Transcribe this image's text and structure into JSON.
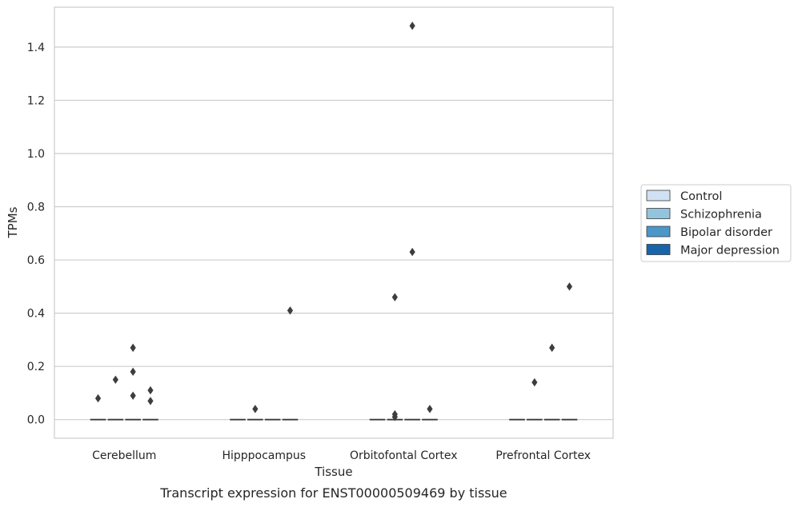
{
  "chart_data": {
    "type": "boxplot",
    "title": "",
    "caption": "Transcript expression for ENST00000509469 by tissue",
    "xlabel": "Tissue",
    "ylabel": "TPMs",
    "ylim": [
      -0.07,
      1.55
    ],
    "yticks": [
      0.0,
      0.2,
      0.4,
      0.6,
      0.8,
      1.0,
      1.2,
      1.4
    ],
    "ytick_labels": [
      "0.0",
      "0.2",
      "0.4",
      "0.6",
      "0.8",
      "1.0",
      "1.2",
      "1.4"
    ],
    "grid": "horizontal",
    "categories": [
      "Cerebellum",
      "Hipppocampus",
      "Orbitofontal Cortex",
      "Prefrontal Cortex"
    ],
    "series": [
      {
        "name": "Control",
        "color": "#cfe1f2"
      },
      {
        "name": "Schizophrenia",
        "color": "#93c4de"
      },
      {
        "name": "Bipolar disorder",
        "color": "#4b97c9"
      },
      {
        "name": "Major depression",
        "color": "#1764ab"
      }
    ],
    "medians": [
      [
        0.0,
        0.0,
        0.0,
        0.0
      ],
      [
        0.0,
        0.0,
        0.0,
        0.0
      ],
      [
        0.0,
        0.0,
        0.0,
        0.0
      ],
      [
        0.0,
        0.0,
        0.0,
        0.0
      ]
    ],
    "outliers": [
      {
        "category": 0,
        "series": 0,
        "values": [
          0.08
        ]
      },
      {
        "category": 0,
        "series": 1,
        "values": [
          0.15
        ]
      },
      {
        "category": 0,
        "series": 2,
        "values": [
          0.27,
          0.18,
          0.09
        ]
      },
      {
        "category": 0,
        "series": 3,
        "values": [
          0.11,
          0.07
        ]
      },
      {
        "category": 1,
        "series": 1,
        "values": [
          0.04
        ]
      },
      {
        "category": 1,
        "series": 3,
        "values": [
          0.41
        ]
      },
      {
        "category": 2,
        "series": 1,
        "values": [
          0.46,
          0.02,
          0.01
        ]
      },
      {
        "category": 2,
        "series": 2,
        "values": [
          1.48,
          0.63
        ]
      },
      {
        "category": 2,
        "series": 3,
        "values": [
          0.04
        ]
      },
      {
        "category": 3,
        "series": 1,
        "values": [
          0.14
        ]
      },
      {
        "category": 3,
        "series": 2,
        "values": [
          0.27
        ]
      },
      {
        "category": 3,
        "series": 3,
        "values": [
          0.5
        ]
      }
    ],
    "legend_position": "right"
  }
}
